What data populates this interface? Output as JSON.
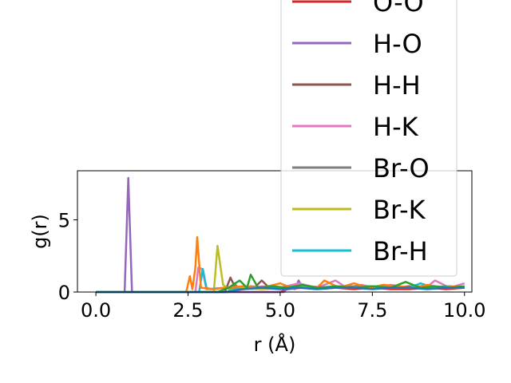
{
  "chart_data": {
    "type": "line",
    "title": "",
    "xlabel": "r (Å)",
    "ylabel": "g(r)",
    "xlim": [
      -0.5,
      10.2
    ],
    "ylim": [
      0,
      8.4
    ],
    "xticks": [
      "0.0",
      "2.5",
      "5.0",
      "7.5",
      "10.0"
    ],
    "xtick_values": [
      0,
      2.5,
      5,
      7.5,
      10
    ],
    "yticks": [
      "0",
      "5"
    ],
    "ytick_values": [
      0,
      5
    ],
    "grid": false,
    "legend_position": "upper-right",
    "series": [
      {
        "name": "O-O",
        "color": "#d62728",
        "x": [
          0,
          5.0,
          5.2,
          5.6,
          6.0,
          6.5,
          7.0,
          7.5,
          8.0,
          8.5,
          9.0,
          9.5,
          10.0
        ],
        "y": [
          0,
          0,
          0.2,
          0.3,
          0.2,
          0.3,
          0.2,
          0.3,
          0.2,
          0.2,
          0.3,
          0.2,
          0.3
        ]
      },
      {
        "name": "H-O",
        "color": "#9467bd",
        "x": [
          0,
          0.78,
          0.88,
          0.98,
          5.1,
          5.2,
          5.4,
          5.5,
          5.6,
          5.8,
          6.2,
          6.6,
          7.0,
          7.4,
          7.8,
          8.3,
          8.8,
          9.2,
          9.6,
          10.0
        ],
        "y": [
          0,
          0,
          7.9,
          0,
          0,
          0.3,
          0.2,
          0.8,
          0.3,
          0.4,
          0.3,
          0.4,
          0.3,
          0.4,
          0.3,
          0.3,
          0.4,
          0.3,
          0.4,
          0.3
        ]
      },
      {
        "name": "H-H",
        "color": "#8c564b",
        "x": [
          0,
          3.5,
          3.65,
          3.8,
          4.3,
          4.5,
          4.7,
          5.0,
          5.5,
          6.0,
          6.5,
          7.0,
          7.5,
          8.0,
          8.5,
          9.0,
          9.5,
          10.0
        ],
        "y": [
          0,
          0,
          1.0,
          0.2,
          0.3,
          0.8,
          0.3,
          0.2,
          0.4,
          0.3,
          0.3,
          0.4,
          0.3,
          0.3,
          0.4,
          0.3,
          0.3,
          0.3
        ]
      },
      {
        "name": "H-K",
        "color": "#e377c2",
        "x": [
          0,
          2.7,
          2.78,
          2.88,
          3.0,
          3.5,
          4.0,
          4.5,
          5.0,
          5.5,
          6.0,
          6.5,
          6.8,
          7.2,
          7.6,
          8.0,
          8.5,
          9.0,
          9.2,
          9.6,
          10.0
        ],
        "y": [
          0,
          0,
          1.7,
          1.6,
          0.2,
          0.3,
          0.2,
          0.4,
          0.3,
          0.6,
          0.3,
          0.8,
          0.3,
          0.5,
          0.3,
          0.5,
          0.3,
          0.4,
          0.8,
          0.3,
          0.6
        ]
      },
      {
        "name": "Br-O",
        "color": "#7f7f7f",
        "x": [
          0,
          3.6,
          3.75,
          3.9,
          4.2,
          4.6,
          5.0,
          5.5,
          6.0,
          6.5,
          7.0,
          7.5,
          8.0,
          8.5,
          9.0,
          9.5,
          10.0
        ],
        "y": [
          0,
          0,
          0.6,
          0.2,
          0.4,
          0.3,
          0.3,
          0.4,
          0.3,
          0.3,
          0.4,
          0.3,
          0.3,
          0.3,
          0.3,
          0.4,
          0.3
        ]
      },
      {
        "name": "Br-K",
        "color": "#bcbd22",
        "x": [
          0,
          3.2,
          3.3,
          3.45,
          3.6,
          4.0,
          4.5,
          5.0,
          5.5,
          6.0,
          6.5,
          7.0,
          7.5,
          8.0,
          8.5,
          9.0,
          9.5,
          10.0
        ],
        "y": [
          0,
          0,
          3.2,
          0.5,
          0.2,
          0.3,
          0.2,
          0.3,
          0.4,
          0.3,
          0.3,
          0.3,
          0.4,
          0.3,
          0.3,
          0.4,
          0.3,
          0.3
        ]
      },
      {
        "name": "Br-H",
        "color": "#17becf",
        "x": [
          0,
          2.8,
          2.9,
          3.0,
          3.1,
          3.5,
          4.0,
          4.5,
          5.0,
          5.5,
          6.0,
          6.5,
          7.0,
          7.5,
          8.0,
          8.5,
          8.8,
          9.2,
          9.6,
          10.0
        ],
        "y": [
          0,
          0,
          1.6,
          0.3,
          0.2,
          0.3,
          0.2,
          0.3,
          0.3,
          0.4,
          0.3,
          0.4,
          0.3,
          0.3,
          0.4,
          0.3,
          0.6,
          0.3,
          0.4,
          0.3
        ]
      },
      {
        "name": "",
        "color": "#ff7f0e",
        "legend": false,
        "x": [
          0,
          2.45,
          2.55,
          2.62,
          2.7,
          2.75,
          2.85,
          3.2,
          3.5,
          4.0,
          4.5,
          5.0,
          5.3,
          5.6,
          6.0,
          6.2,
          6.6,
          7.0,
          7.4,
          7.8,
          8.2,
          8.6,
          9.0,
          9.4,
          9.8,
          10.0
        ],
        "y": [
          0,
          0,
          1.1,
          0.2,
          1.7,
          3.8,
          0.3,
          0.2,
          0.3,
          0.4,
          0.3,
          0.6,
          0.3,
          0.5,
          0.3,
          0.8,
          0.3,
          0.6,
          0.3,
          0.5,
          0.4,
          0.3,
          0.5,
          0.3,
          0.4,
          0.3
        ]
      },
      {
        "name": "",
        "color": "#2ca02c",
        "legend": false,
        "x": [
          0,
          3.3,
          3.6,
          3.9,
          4.1,
          4.2,
          4.4,
          4.8,
          5.2,
          5.6,
          6.0,
          6.5,
          7.0,
          7.5,
          8.0,
          8.4,
          8.8,
          9.2,
          9.6,
          10.0
        ],
        "y": [
          0,
          0,
          0.3,
          0.8,
          0.3,
          1.2,
          0.3,
          0.4,
          0.3,
          0.5,
          0.3,
          0.4,
          0.3,
          0.4,
          0.3,
          0.7,
          0.3,
          0.4,
          0.3,
          0.4
        ]
      },
      {
        "name": "",
        "color": "#1f77b4",
        "legend": false,
        "x": [
          0,
          3.5,
          4.0,
          4.5,
          5.0,
          5.5,
          6.0,
          6.5,
          7.0,
          7.5,
          8.0,
          8.5,
          9.0,
          9.5,
          10.0
        ],
        "y": [
          0,
          0,
          0.2,
          0.3,
          0.2,
          0.3,
          0.2,
          0.3,
          0.3,
          0.2,
          0.3,
          0.3,
          0.2,
          0.3,
          0.3
        ]
      }
    ]
  }
}
